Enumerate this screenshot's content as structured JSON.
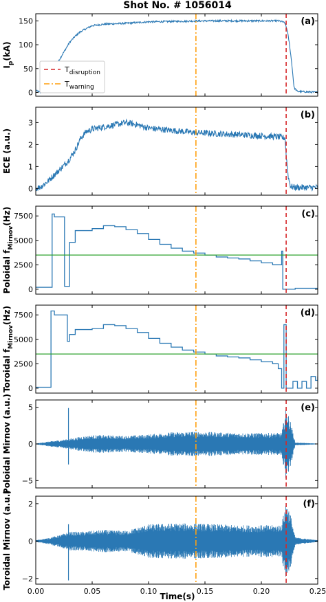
{
  "title": "Shot No. # 1056014",
  "xlabel": "Time(s)",
  "x_ticks": [
    "0.00",
    "0.05",
    "0.10",
    "0.15",
    "0.20",
    "0.25"
  ],
  "colors": {
    "signal": "#2a78b4",
    "disruption": "#d62728",
    "warning": "#ff9f0e",
    "threshold": "#2ca02c"
  },
  "chart_data": [
    {
      "type": "line",
      "tag": "(a)",
      "ylabel": "I",
      "ylabel_sub": "p",
      "ylabel_suffix": "(kA)",
      "xlim": [
        0,
        0.25
      ],
      "ylim": [
        -8,
        165
      ],
      "yticks": [
        "0",
        "50",
        "100",
        "150"
      ],
      "ytick_values": [
        0,
        50,
        100,
        150
      ],
      "t_disruption": 0.222,
      "t_warning": 0.142,
      "legend": {
        "placement": "left",
        "items": [
          {
            "label": "T",
            "sub": "disruption",
            "style": "dashed",
            "color": "#d62728"
          },
          {
            "label": "T",
            "sub": "warning",
            "style": "dashdot",
            "color": "#ff9f0e"
          }
        ]
      },
      "series": [
        {
          "x": [
            0,
            0.002,
            0.004,
            0.006,
            0.008,
            0.01,
            0.015,
            0.02,
            0.025,
            0.03,
            0.035,
            0.04,
            0.045,
            0.05,
            0.06,
            0.08,
            0.1,
            0.15,
            0.2,
            0.215,
            0.219,
            0.221,
            0.223,
            0.225,
            0.227,
            0.229,
            0.232,
            0.25
          ],
          "y": [
            4,
            2,
            0,
            6,
            10,
            28,
            50,
            65,
            85,
            105,
            118,
            128,
            134,
            140,
            143,
            145,
            148,
            150,
            150,
            150,
            148,
            145,
            130,
            100,
            60,
            10,
            2,
            0
          ],
          "noise": 1.8
        }
      ]
    },
    {
      "type": "line",
      "tag": "(b)",
      "ylabel": "ECE (a.u.)",
      "xlim": [
        0,
        0.25
      ],
      "ylim": [
        -0.3,
        3.7
      ],
      "yticks": [
        "0",
        "1",
        "2",
        "3"
      ],
      "ytick_values": [
        0,
        1,
        2,
        3
      ],
      "t_disruption": 0.222,
      "t_warning": 0.142,
      "series": [
        {
          "x": [
            0,
            0.005,
            0.01,
            0.015,
            0.02,
            0.025,
            0.03,
            0.035,
            0.04,
            0.045,
            0.05,
            0.06,
            0.07,
            0.08,
            0.09,
            0.1,
            0.12,
            0.14,
            0.16,
            0.18,
            0.2,
            0.215,
            0.221,
            0.222,
            0.224,
            0.226,
            0.23,
            0.25
          ],
          "y": [
            0,
            0.1,
            0.3,
            0.55,
            0.8,
            1.05,
            1.35,
            1.75,
            2.3,
            2.6,
            2.7,
            2.8,
            2.9,
            3.0,
            2.9,
            2.75,
            2.65,
            2.55,
            2.5,
            2.45,
            2.4,
            2.35,
            2.3,
            1.5,
            0.5,
            0.1,
            0.05,
            0.05
          ],
          "noise": 0.14
        }
      ]
    },
    {
      "type": "line",
      "tag": "(c)",
      "ylabel": "Poloidal f",
      "ylabel_sub": "Mirnov",
      "ylabel_suffix": "(Hz)",
      "xlim": [
        0,
        0.25
      ],
      "ylim": [
        -500,
        8500
      ],
      "yticks": [
        "0",
        "2500",
        "5000",
        "7500"
      ],
      "ytick_values": [
        0,
        2500,
        5000,
        7500
      ],
      "t_disruption": 0.222,
      "t_warning": 0.142,
      "threshold": 3500,
      "series": [
        {
          "x": [
            0,
            0.014,
            0.0145,
            0.016,
            0.0165,
            0.025,
            0.0255,
            0.028,
            0.03,
            0.035,
            0.05,
            0.06,
            0.07,
            0.08,
            0.09,
            0.1,
            0.11,
            0.12,
            0.13,
            0.14,
            0.15,
            0.16,
            0.17,
            0.18,
            0.19,
            0.2,
            0.21,
            0.218,
            0.219,
            0.22,
            0.23,
            0.25
          ],
          "y": [
            200,
            200,
            7700,
            7700,
            7400,
            7400,
            300,
            300,
            4800,
            6000,
            6200,
            6500,
            6400,
            6100,
            5700,
            5100,
            4600,
            4200,
            3900,
            3700,
            3500,
            3300,
            3200,
            3100,
            2900,
            2700,
            2500,
            3900,
            0,
            0,
            100,
            0
          ],
          "step": true
        }
      ]
    },
    {
      "type": "line",
      "tag": "(d)",
      "ylabel": "Toroidal f",
      "ylabel_sub": "Mirnov",
      "ylabel_suffix": "(Hz)",
      "xlim": [
        0,
        0.25
      ],
      "ylim": [
        -500,
        8500
      ],
      "yticks": [
        "0",
        "2500",
        "5000",
        "7500"
      ],
      "ytick_values": [
        0,
        2500,
        5000,
        7500
      ],
      "t_disruption": 0.222,
      "t_warning": 0.142,
      "threshold": 3500,
      "series": [
        {
          "x": [
            0,
            0.013,
            0.0135,
            0.016,
            0.0165,
            0.026,
            0.0265,
            0.028,
            0.03,
            0.035,
            0.05,
            0.06,
            0.07,
            0.08,
            0.09,
            0.1,
            0.11,
            0.12,
            0.13,
            0.14,
            0.15,
            0.16,
            0.17,
            0.18,
            0.19,
            0.2,
            0.21,
            0.215,
            0.218,
            0.22,
            0.222,
            0.223,
            0.228,
            0.232,
            0.236,
            0.24,
            0.244,
            0.248,
            0.25
          ],
          "y": [
            100,
            100,
            7900,
            7900,
            7500,
            7500,
            7500,
            4800,
            5500,
            6000,
            6100,
            6500,
            6400,
            6100,
            5700,
            5100,
            4600,
            4200,
            3900,
            3700,
            3500,
            3300,
            3200,
            3100,
            2900,
            2700,
            2500,
            2000,
            0,
            6500,
            0,
            0,
            700,
            0,
            700,
            0,
            1200,
            800,
            1200
          ],
          "step": true
        }
      ]
    },
    {
      "type": "line",
      "tag": "(e)",
      "ylabel": "Poloidal Mirnov (a.u.)",
      "xlim": [
        0,
        0.25
      ],
      "ylim": [
        -6,
        6
      ],
      "yticks": [
        "−5",
        "0",
        "5"
      ],
      "ytick_values": [
        -5,
        0,
        5
      ],
      "t_disruption": 0.222,
      "t_warning": 0.142,
      "series": [
        {
          "x": [
            0,
            0.01,
            0.02,
            0.03,
            0.04,
            0.05,
            0.06,
            0.08,
            0.1,
            0.12,
            0.14,
            0.16,
            0.18,
            0.2,
            0.215,
            0.218,
            0.222,
            0.226,
            0.23,
            0.25
          ],
          "amplitude": [
            0.05,
            0.3,
            0.5,
            0.7,
            1.0,
            1.2,
            1.2,
            1.1,
            1.3,
            1.6,
            1.7,
            1.6,
            1.5,
            1.5,
            1.5,
            1.5,
            5.0,
            3.0,
            0.2,
            0.05
          ],
          "spikes": [
            {
              "x": 0.029,
              "min": -2.8,
              "max": 4.9
            }
          ],
          "oscillation": true
        }
      ]
    },
    {
      "type": "line",
      "tag": "(f)",
      "ylabel": "Toroidal Mirnov (a.u.)",
      "xlim": [
        0,
        0.25
      ],
      "ylim": [
        -2.3,
        2.4
      ],
      "yticks": [
        "−2",
        "0",
        "2"
      ],
      "ytick_values": [
        -2,
        0,
        2
      ],
      "t_disruption": 0.222,
      "t_warning": 0.142,
      "series": [
        {
          "x": [
            0,
            0.01,
            0.02,
            0.03,
            0.04,
            0.05,
            0.06,
            0.08,
            0.1,
            0.12,
            0.14,
            0.16,
            0.18,
            0.2,
            0.215,
            0.218,
            0.222,
            0.226,
            0.23,
            0.25
          ],
          "amplitude": [
            0.05,
            0.15,
            0.3,
            0.5,
            0.5,
            0.55,
            0.6,
            0.55,
            0.9,
            0.95,
            0.95,
            0.9,
            0.85,
            0.85,
            0.85,
            0.9,
            2.2,
            1.4,
            0.2,
            0.05
          ],
          "spikes": [
            {
              "x": 0.029,
              "min": -2.1,
              "max": 0.9
            }
          ],
          "oscillation": true
        }
      ]
    }
  ]
}
